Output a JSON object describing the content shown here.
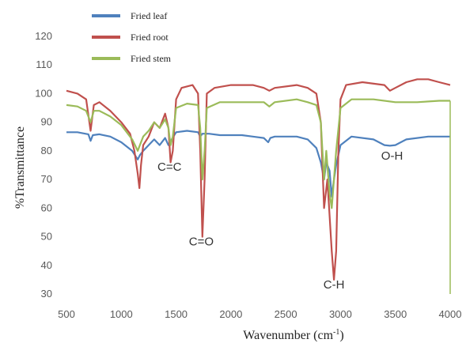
{
  "chart_data": {
    "type": "line",
    "xlabel": "Wavenumber (cm",
    "xlabel_sup": "-1",
    "xlabel_close": ")",
    "ylabel": "%Transmittance",
    "xlim": [
      500,
      4000
    ],
    "ylim": [
      30,
      120
    ],
    "xticks": [
      500,
      1000,
      1500,
      2000,
      2500,
      3000,
      3500,
      4000
    ],
    "yticks": [
      30,
      40,
      50,
      60,
      70,
      80,
      90,
      100,
      110,
      120
    ],
    "grid": false,
    "legend_position": "top-left",
    "annotations": [
      {
        "text": "C=C",
        "x": 1440,
        "y": 73
      },
      {
        "text": "C=O",
        "x": 1730,
        "y": 47
      },
      {
        "text": "C-H",
        "x": 2940,
        "y": 32
      },
      {
        "text": "O-H",
        "x": 3470,
        "y": 77
      }
    ],
    "series": [
      {
        "name": "Fried leaf",
        "color": "#4f81bd",
        "points": [
          [
            500,
            86.5
          ],
          [
            600,
            86.5
          ],
          [
            700,
            85.8
          ],
          [
            720,
            83.5
          ],
          [
            740,
            85.5
          ],
          [
            800,
            85.8
          ],
          [
            900,
            85
          ],
          [
            1000,
            83
          ],
          [
            1100,
            80
          ],
          [
            1150,
            77
          ],
          [
            1170,
            78.5
          ],
          [
            1200,
            80
          ],
          [
            1250,
            82
          ],
          [
            1300,
            84
          ],
          [
            1350,
            82
          ],
          [
            1400,
            84.5
          ],
          [
            1430,
            82
          ],
          [
            1460,
            84
          ],
          [
            1500,
            86.5
          ],
          [
            1600,
            87
          ],
          [
            1700,
            86.5
          ],
          [
            1720,
            85
          ],
          [
            1740,
            86
          ],
          [
            1800,
            86
          ],
          [
            1900,
            85.5
          ],
          [
            2000,
            85.5
          ],
          [
            2100,
            85.5
          ],
          [
            2200,
            85
          ],
          [
            2300,
            84.5
          ],
          [
            2340,
            83
          ],
          [
            2360,
            84.5
          ],
          [
            2400,
            85
          ],
          [
            2600,
            85
          ],
          [
            2700,
            84
          ],
          [
            2780,
            81
          ],
          [
            2820,
            76
          ],
          [
            2850,
            70
          ],
          [
            2870,
            76
          ],
          [
            2900,
            73
          ],
          [
            2920,
            64
          ],
          [
            2940,
            70
          ],
          [
            2960,
            75
          ],
          [
            3000,
            82
          ],
          [
            3100,
            85
          ],
          [
            3300,
            84
          ],
          [
            3400,
            82
          ],
          [
            3450,
            81.8
          ],
          [
            3500,
            82
          ],
          [
            3600,
            84
          ],
          [
            3800,
            85
          ],
          [
            4000,
            85
          ]
        ]
      },
      {
        "name": "Fried root",
        "color": "#c0504d",
        "points": [
          [
            500,
            101
          ],
          [
            600,
            100
          ],
          [
            680,
            98
          ],
          [
            720,
            87
          ],
          [
            750,
            96
          ],
          [
            800,
            97
          ],
          [
            900,
            94
          ],
          [
            1000,
            90
          ],
          [
            1080,
            86
          ],
          [
            1120,
            80
          ],
          [
            1150,
            72
          ],
          [
            1165,
            67
          ],
          [
            1180,
            75
          ],
          [
            1200,
            82
          ],
          [
            1250,
            85
          ],
          [
            1300,
            90
          ],
          [
            1350,
            88
          ],
          [
            1400,
            93
          ],
          [
            1430,
            88
          ],
          [
            1450,
            76
          ],
          [
            1470,
            80
          ],
          [
            1500,
            98
          ],
          [
            1550,
            102
          ],
          [
            1650,
            103
          ],
          [
            1700,
            100
          ],
          [
            1720,
            80
          ],
          [
            1740,
            50
          ],
          [
            1760,
            70
          ],
          [
            1780,
            100
          ],
          [
            1850,
            102
          ],
          [
            2000,
            103
          ],
          [
            2200,
            103
          ],
          [
            2300,
            102
          ],
          [
            2350,
            101
          ],
          [
            2400,
            102
          ],
          [
            2600,
            103
          ],
          [
            2700,
            102
          ],
          [
            2780,
            100
          ],
          [
            2820,
            90
          ],
          [
            2850,
            60
          ],
          [
            2880,
            70
          ],
          [
            2920,
            45
          ],
          [
            2940,
            35
          ],
          [
            2960,
            45
          ],
          [
            2980,
            80
          ],
          [
            3000,
            98
          ],
          [
            3050,
            103
          ],
          [
            3200,
            104
          ],
          [
            3400,
            103
          ],
          [
            3450,
            101
          ],
          [
            3500,
            102
          ],
          [
            3600,
            104
          ],
          [
            3700,
            105
          ],
          [
            3800,
            105
          ],
          [
            3900,
            104
          ],
          [
            4000,
            103
          ]
        ]
      },
      {
        "name": "Fried stem",
        "color": "#9bbb59",
        "points": [
          [
            500,
            96
          ],
          [
            600,
            95.5
          ],
          [
            680,
            94
          ],
          [
            720,
            90
          ],
          [
            750,
            94
          ],
          [
            800,
            94
          ],
          [
            900,
            92
          ],
          [
            1000,
            89
          ],
          [
            1100,
            84
          ],
          [
            1150,
            80
          ],
          [
            1170,
            82
          ],
          [
            1200,
            85
          ],
          [
            1250,
            87
          ],
          [
            1300,
            90
          ],
          [
            1350,
            88
          ],
          [
            1400,
            91
          ],
          [
            1430,
            88
          ],
          [
            1450,
            82
          ],
          [
            1470,
            85
          ],
          [
            1500,
            95
          ],
          [
            1600,
            96.5
          ],
          [
            1700,
            96
          ],
          [
            1720,
            88
          ],
          [
            1740,
            70
          ],
          [
            1760,
            80
          ],
          [
            1780,
            95
          ],
          [
            1900,
            97
          ],
          [
            2100,
            97
          ],
          [
            2300,
            97
          ],
          [
            2350,
            95.5
          ],
          [
            2400,
            97
          ],
          [
            2600,
            98
          ],
          [
            2700,
            97
          ],
          [
            2780,
            96
          ],
          [
            2820,
            90
          ],
          [
            2850,
            70
          ],
          [
            2870,
            80
          ],
          [
            2900,
            65
          ],
          [
            2920,
            60
          ],
          [
            2940,
            70
          ],
          [
            2960,
            80
          ],
          [
            3000,
            95
          ],
          [
            3100,
            98
          ],
          [
            3300,
            98
          ],
          [
            3500,
            97
          ],
          [
            3700,
            97
          ],
          [
            3900,
            97.5
          ],
          [
            4000,
            97.5
          ]
        ]
      }
    ]
  }
}
